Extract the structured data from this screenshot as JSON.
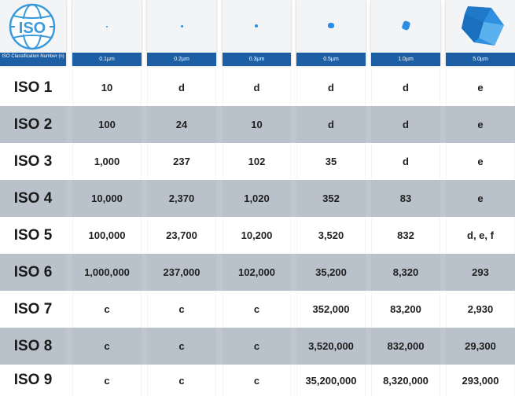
{
  "header": {
    "classification_label": "ISO Classification Number (n)",
    "sizes": [
      "0.1µm",
      "0.2µm",
      "0.3µm",
      "0.5µm",
      "1.0µm",
      "5.0µm"
    ],
    "logo_text": "ISO",
    "accent": "#1d5fa5",
    "particle_color": "#2b8ee3"
  },
  "rows": [
    {
      "iso": "ISO 1",
      "values": [
        "10",
        "d",
        "d",
        "d",
        "d",
        "e"
      ]
    },
    {
      "iso": "ISO 2",
      "values": [
        "100",
        "24",
        "10",
        "d",
        "d",
        "e"
      ]
    },
    {
      "iso": "ISO 3",
      "values": [
        "1,000",
        "237",
        "102",
        "35",
        "d",
        "e"
      ]
    },
    {
      "iso": "ISO 4",
      "values": [
        "10,000",
        "2,370",
        "1,020",
        "352",
        "83",
        "e"
      ]
    },
    {
      "iso": "ISO 5",
      "values": [
        "100,000",
        "23,700",
        "10,200",
        "3,520",
        "832",
        "d, e, f"
      ]
    },
    {
      "iso": "ISO 6",
      "values": [
        "1,000,000",
        "237,000",
        "102,000",
        "35,200",
        "8,320",
        "293"
      ]
    },
    {
      "iso": "ISO 7",
      "values": [
        "c",
        "c",
        "c",
        "352,000",
        "83,200",
        "2,930"
      ]
    },
    {
      "iso": "ISO 8",
      "values": [
        "c",
        "c",
        "c",
        "3,520,000",
        "832,000",
        "29,300"
      ]
    },
    {
      "iso": "ISO 9",
      "values": [
        "c",
        "c",
        "c",
        "35,200,000",
        "8,320,000",
        "293,000"
      ]
    }
  ]
}
